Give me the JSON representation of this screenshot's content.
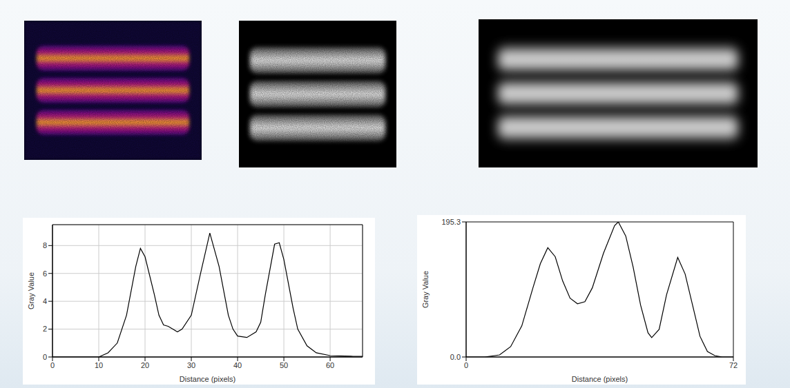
{
  "chart_data": [
    {
      "type": "line",
      "x_label": "Distance (pixels)",
      "y_label": "Gray Value",
      "x": [
        0,
        10,
        12,
        14,
        16,
        18,
        19,
        20,
        22,
        23,
        24,
        25,
        26,
        27,
        28,
        30,
        32,
        34,
        36,
        38,
        39,
        40,
        42,
        44,
        45,
        46,
        48,
        49,
        50,
        52,
        53,
        55,
        57,
        60,
        65,
        67
      ],
      "values": [
        0,
        0,
        0.3,
        1,
        3,
        6.5,
        7.8,
        7.2,
        4.5,
        3,
        2.3,
        2.2,
        2,
        1.8,
        2,
        3,
        6,
        8.9,
        6.5,
        3,
        2,
        1.5,
        1.4,
        1.8,
        2.5,
        4.5,
        8.1,
        8.2,
        7,
        3.5,
        2,
        0.8,
        0.3,
        0.1,
        0.05,
        0.05
      ],
      "color": "#000000",
      "xlim": [
        0,
        67
      ],
      "xticks": [
        0,
        10,
        20,
        30,
        40,
        50,
        60
      ],
      "ylim": [
        0,
        9.5
      ],
      "yticks": [
        0,
        2,
        4,
        6,
        8
      ],
      "grid": true
    },
    {
      "type": "line",
      "x_label": "Distance (pixels)",
      "y_label": "Gray Value",
      "x": [
        0,
        5,
        9,
        12,
        15,
        18,
        20,
        22,
        24,
        26,
        28,
        30,
        32,
        34,
        37,
        40,
        41,
        43,
        45,
        47,
        49,
        50,
        52,
        54,
        57,
        59,
        61,
        63,
        65,
        67,
        69,
        72
      ],
      "values": [
        0,
        0,
        3,
        15,
        45,
        100,
        135,
        158,
        145,
        110,
        85,
        77,
        80,
        100,
        150,
        190,
        195.3,
        175,
        130,
        75,
        35,
        28,
        40,
        90,
        144,
        120,
        75,
        30,
        8,
        2,
        0,
        0
      ],
      "color": "#000000",
      "xlim": [
        0,
        72
      ],
      "xticks": [
        0,
        72
      ],
      "ylim": [
        0,
        195.3
      ],
      "yticks": [
        {
          "value": 0,
          "label": "0.0"
        },
        195.3
      ],
      "grid": false
    }
  ]
}
